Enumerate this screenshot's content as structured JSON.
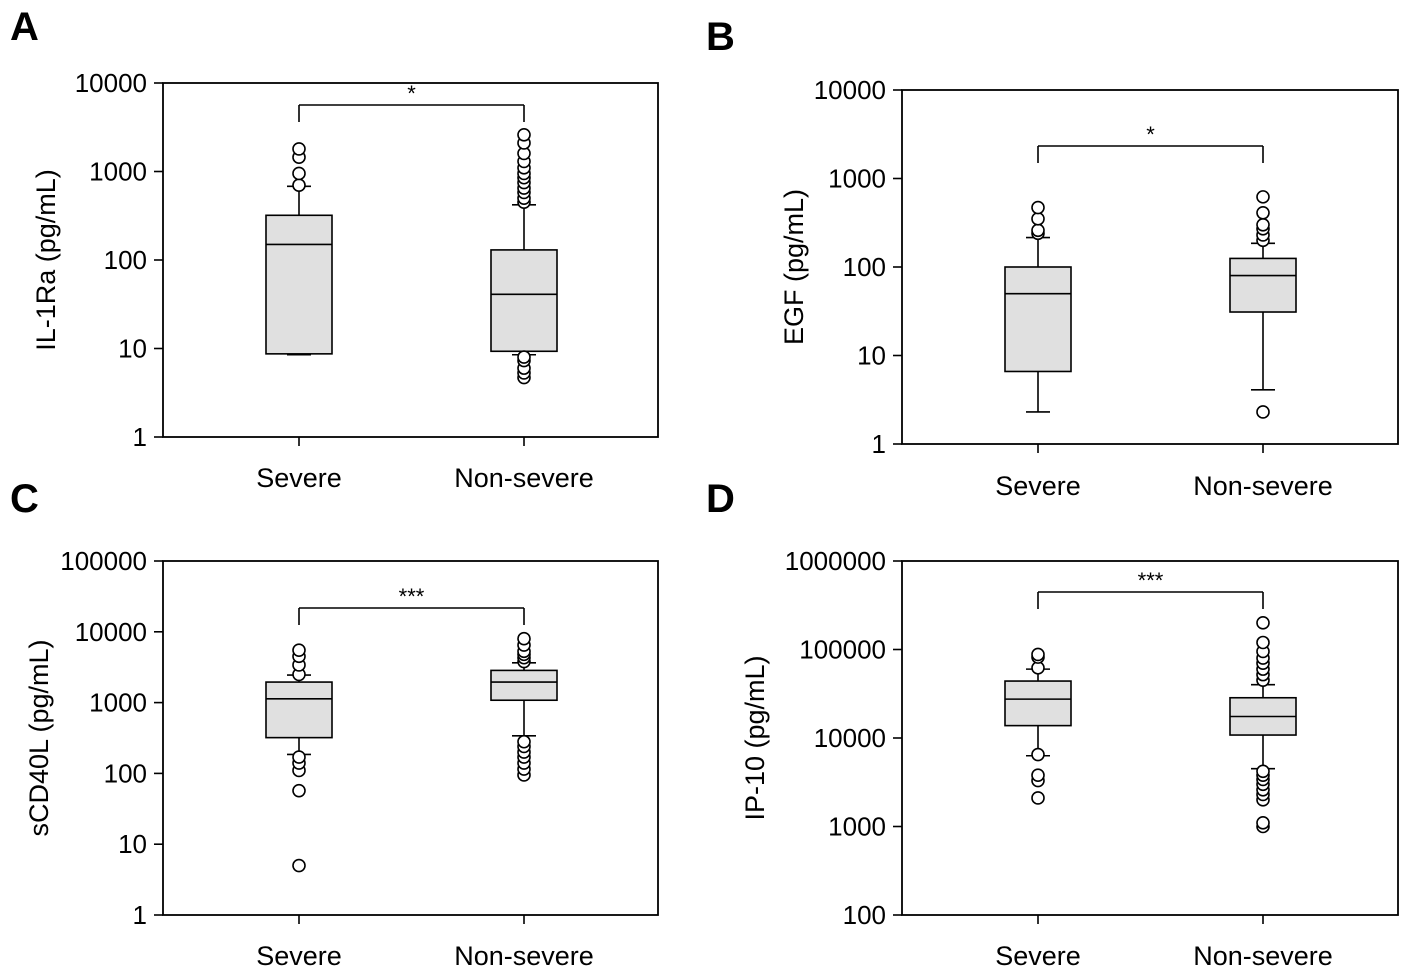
{
  "figure": {
    "panels": [
      "A",
      "B",
      "C",
      "D"
    ]
  },
  "chart_data": [
    {
      "panel": "A",
      "type": "box",
      "categories": [
        "Severe",
        "Non-severe"
      ],
      "ylabel": "IL-1Ra (pg/mL)",
      "yscale": "log",
      "ylim": [
        1,
        10000
      ],
      "yticks": [
        "1",
        "10",
        "100",
        "1000",
        "10000"
      ],
      "significance": "*",
      "boxes": [
        {
          "category": "Severe",
          "whisker_low": 8.5,
          "q1": 8.7,
          "median": 150,
          "q3": 320,
          "whisker_high": 680,
          "outliers": [
            700,
            950,
            1450,
            1800
          ]
        },
        {
          "category": "Non-severe",
          "whisker_low": 8.5,
          "q1": 9.3,
          "median": 41,
          "q3": 130,
          "whisker_high": 420,
          "outliers": [
            4.7,
            5.3,
            6.0,
            7.3,
            8.0,
            450,
            500,
            580,
            650,
            750,
            850,
            950,
            1100,
            1300,
            1600,
            2100,
            2600
          ]
        }
      ]
    },
    {
      "panel": "B",
      "type": "box",
      "categories": [
        "Severe",
        "Non-severe"
      ],
      "ylabel": "EGF (pg/mL)",
      "yscale": "log",
      "ylim": [
        1,
        10000
      ],
      "yticks": [
        "1",
        "10",
        "100",
        "1000",
        "10000"
      ],
      "significance": "*",
      "boxes": [
        {
          "category": "Severe",
          "whisker_low": 2.3,
          "q1": 6.6,
          "median": 50,
          "q3": 100,
          "whisker_high": 215,
          "outliers": [
            240,
            260,
            350,
            470
          ]
        },
        {
          "category": "Non-severe",
          "whisker_low": 4.1,
          "q1": 31,
          "median": 80,
          "q3": 125,
          "whisker_high": 185,
          "outliers": [
            2.3,
            200,
            230,
            270,
            300,
            410,
            620
          ]
        }
      ]
    },
    {
      "panel": "C",
      "type": "box",
      "categories": [
        "Severe",
        "Non-severe"
      ],
      "ylabel": "sCD40L (pg/mL)",
      "yscale": "log",
      "ylim": [
        1,
        100000
      ],
      "yticks": [
        "1",
        "10",
        "100",
        "1000",
        "10000",
        "100000"
      ],
      "significance": "***",
      "boxes": [
        {
          "category": "Severe",
          "whisker_low": 185,
          "q1": 320,
          "median": 1130,
          "q3": 1950,
          "whisker_high": 2450,
          "outliers": [
            5,
            57,
            110,
            140,
            170,
            2500,
            3400,
            4500,
            5500
          ]
        },
        {
          "category": "Non-severe",
          "whisker_low": 340,
          "q1": 1080,
          "median": 1950,
          "q3": 2850,
          "whisker_high": 3650,
          "outliers": [
            95,
            115,
            140,
            170,
            200,
            240,
            280,
            3800,
            4300,
            4800,
            5300,
            6500,
            8000
          ]
        }
      ]
    },
    {
      "panel": "D",
      "type": "box",
      "categories": [
        "Severe",
        "Non-severe"
      ],
      "ylabel": "IP-10 (pg/mL)",
      "yscale": "log",
      "ylim": [
        100,
        1000000
      ],
      "yticks": [
        "100",
        "1000",
        "10000",
        "100000",
        "1000000"
      ],
      "significance": "***",
      "boxes": [
        {
          "category": "Severe",
          "whisker_low": 6300,
          "q1": 13800,
          "median": 27500,
          "q3": 44000,
          "whisker_high": 60000,
          "outliers": [
            2100,
            3300,
            3800,
            6500,
            62000,
            82000,
            88000
          ]
        },
        {
          "category": "Non-severe",
          "whisker_low": 4500,
          "q1": 10800,
          "median": 17500,
          "q3": 28500,
          "whisker_high": 40000,
          "outliers": [
            1000,
            1100,
            2000,
            2300,
            2600,
            3000,
            3400,
            3800,
            4200,
            45000,
            52000,
            60000,
            70000,
            80000,
            95000,
            120000,
            200000
          ]
        }
      ]
    }
  ]
}
